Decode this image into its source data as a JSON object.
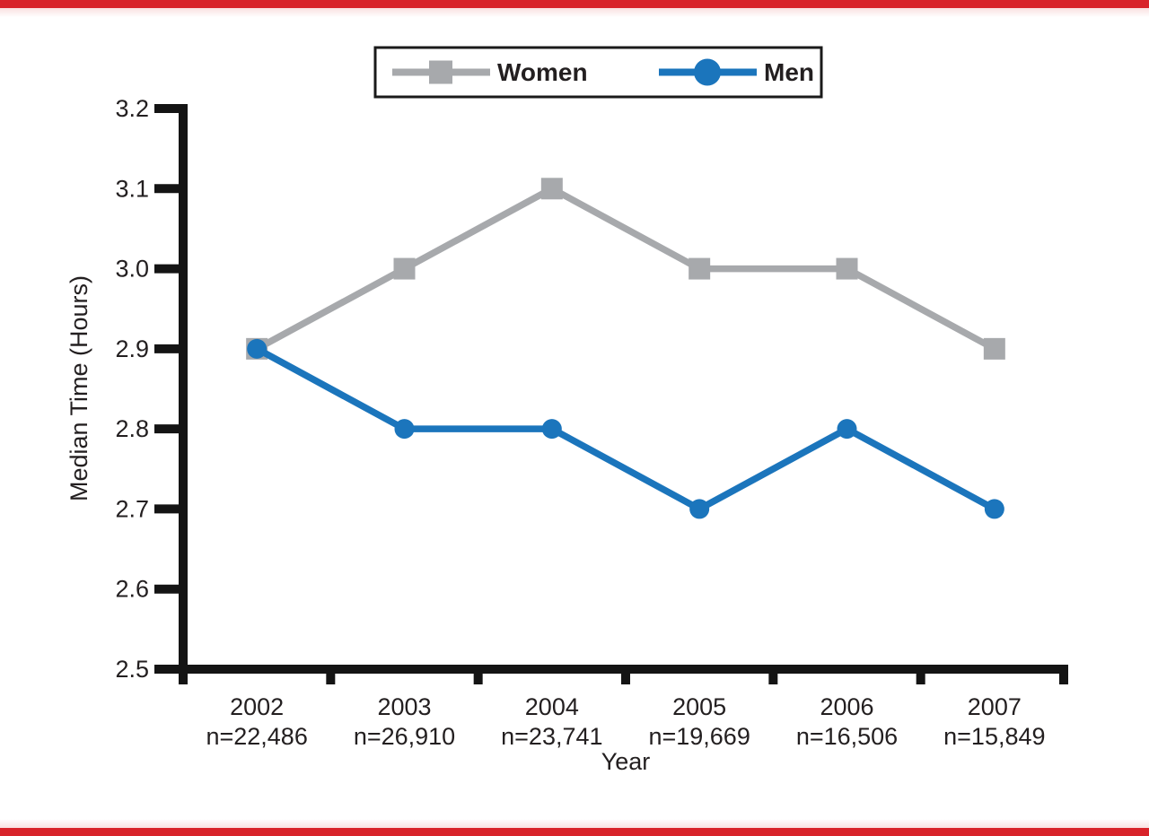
{
  "colors": {
    "frame_red": "#d8232a",
    "women": "#a7a9ac",
    "men": "#1b75bc",
    "axis": "#141414",
    "text": "#231f20"
  },
  "chart_data": {
    "type": "line",
    "title": "",
    "xlabel": "Year",
    "ylabel": "Median Time (Hours)",
    "ylim": [
      2.5,
      3.2
    ],
    "yticks": [
      3.2,
      3.1,
      3.0,
      2.9,
      2.8,
      2.7,
      2.6,
      2.5
    ],
    "categories": [
      "2002",
      "2003",
      "2004",
      "2005",
      "2006",
      "2007"
    ],
    "category_counts": [
      "n=22,486",
      "n=26,910",
      "n=23,741",
      "n=19,669",
      "n=16,506",
      "n=15,849"
    ],
    "series": [
      {
        "name": "Women",
        "marker": "square",
        "color": "#a7a9ac",
        "values": [
          2.9,
          3.0,
          3.1,
          3.0,
          3.0,
          2.9
        ]
      },
      {
        "name": "Men",
        "marker": "circle",
        "color": "#1b75bc",
        "values": [
          2.9,
          2.8,
          2.8,
          2.7,
          2.8,
          2.7
        ]
      }
    ],
    "legend_position": "top-center",
    "grid": false
  }
}
